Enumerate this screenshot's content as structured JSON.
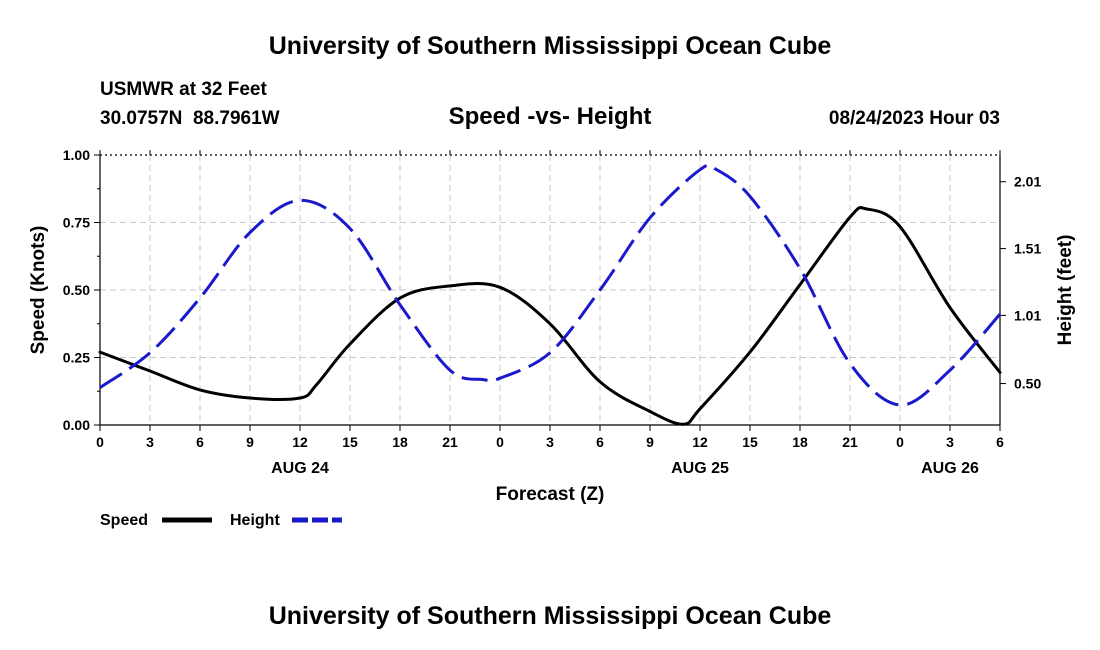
{
  "header": {
    "title": "University of Southern Mississippi Ocean Cube",
    "station": "USMWR at 32 Feet",
    "location": "30.0757N  88.7961W",
    "datetime": "08/24/2023 Hour 03",
    "footer_title": "University of Southern Mississippi Ocean Cube"
  },
  "colors": {
    "speed": "#000000",
    "height": "#1a1acc",
    "grid": "#c8c8c8"
  },
  "chart_data": {
    "type": "line",
    "title": "Speed -vs- Height",
    "xlabel": "Forecast (Z)",
    "ylabel": "Speed (Knots)",
    "y2label": "Height (feet)",
    "x_range": [
      0,
      54
    ],
    "ylim": [
      0,
      1.0
    ],
    "y2lim": [
      0.19,
      2.21
    ],
    "x_ticks": [
      {
        "x": 0,
        "label": "0"
      },
      {
        "x": 3,
        "label": "3"
      },
      {
        "x": 6,
        "label": "6"
      },
      {
        "x": 9,
        "label": "9"
      },
      {
        "x": 12,
        "label": "12"
      },
      {
        "x": 15,
        "label": "15"
      },
      {
        "x": 18,
        "label": "18"
      },
      {
        "x": 21,
        "label": "21"
      },
      {
        "x": 24,
        "label": "0"
      },
      {
        "x": 27,
        "label": "3"
      },
      {
        "x": 30,
        "label": "6"
      },
      {
        "x": 33,
        "label": "9"
      },
      {
        "x": 36,
        "label": "12"
      },
      {
        "x": 39,
        "label": "15"
      },
      {
        "x": 42,
        "label": "18"
      },
      {
        "x": 45,
        "label": "21"
      },
      {
        "x": 48,
        "label": "0"
      },
      {
        "x": 51,
        "label": "3"
      },
      {
        "x": 54,
        "label": "6"
      }
    ],
    "date_labels": [
      {
        "x": 12,
        "label": "AUG 24"
      },
      {
        "x": 36,
        "label": "AUG 25"
      },
      {
        "x": 51,
        "label": "AUG 26"
      }
    ],
    "y_ticks": [
      {
        "value": 0.0,
        "label": "0.00"
      },
      {
        "value": 0.25,
        "label": "0.25"
      },
      {
        "value": 0.5,
        "label": "0.50"
      },
      {
        "value": 0.75,
        "label": "0.75"
      },
      {
        "value": 1.0,
        "label": "1.00"
      }
    ],
    "y2_ticks": [
      {
        "value": 0.5,
        "label": "0.50"
      },
      {
        "value": 1.01,
        "label": "1.01"
      },
      {
        "value": 1.51,
        "label": "1.51"
      },
      {
        "value": 2.01,
        "label": "2.01"
      }
    ],
    "series": [
      {
        "name": "Speed",
        "axis": "left",
        "style": "solid",
        "x": [
          0,
          3,
          6,
          9,
          12,
          13,
          15,
          18,
          21,
          24,
          27,
          30,
          33,
          35,
          36,
          39,
          42,
          45,
          46,
          48,
          51,
          54
        ],
        "values": [
          0.27,
          0.2,
          0.13,
          0.1,
          0.1,
          0.15,
          0.3,
          0.47,
          0.515,
          0.51,
          0.375,
          0.16,
          0.05,
          0.003,
          0.06,
          0.27,
          0.52,
          0.77,
          0.8,
          0.735,
          0.435,
          0.195
        ]
      },
      {
        "name": "Height",
        "axis": "right",
        "style": "dashed",
        "x": [
          0,
          3,
          6,
          9,
          12,
          15,
          18,
          21,
          23,
          24,
          27,
          30,
          33,
          36,
          37,
          39,
          42,
          45,
          48,
          51,
          54
        ],
        "values": [
          0.47,
          0.73,
          1.14,
          1.63,
          1.87,
          1.66,
          1.09,
          0.6,
          0.53,
          0.54,
          0.73,
          1.2,
          1.74,
          2.1,
          2.1,
          1.9,
          1.36,
          0.65,
          0.34,
          0.6,
          1.02
        ]
      }
    ],
    "legend": {
      "position": "bottom-left",
      "entries": [
        "Speed",
        "Height"
      ]
    }
  }
}
